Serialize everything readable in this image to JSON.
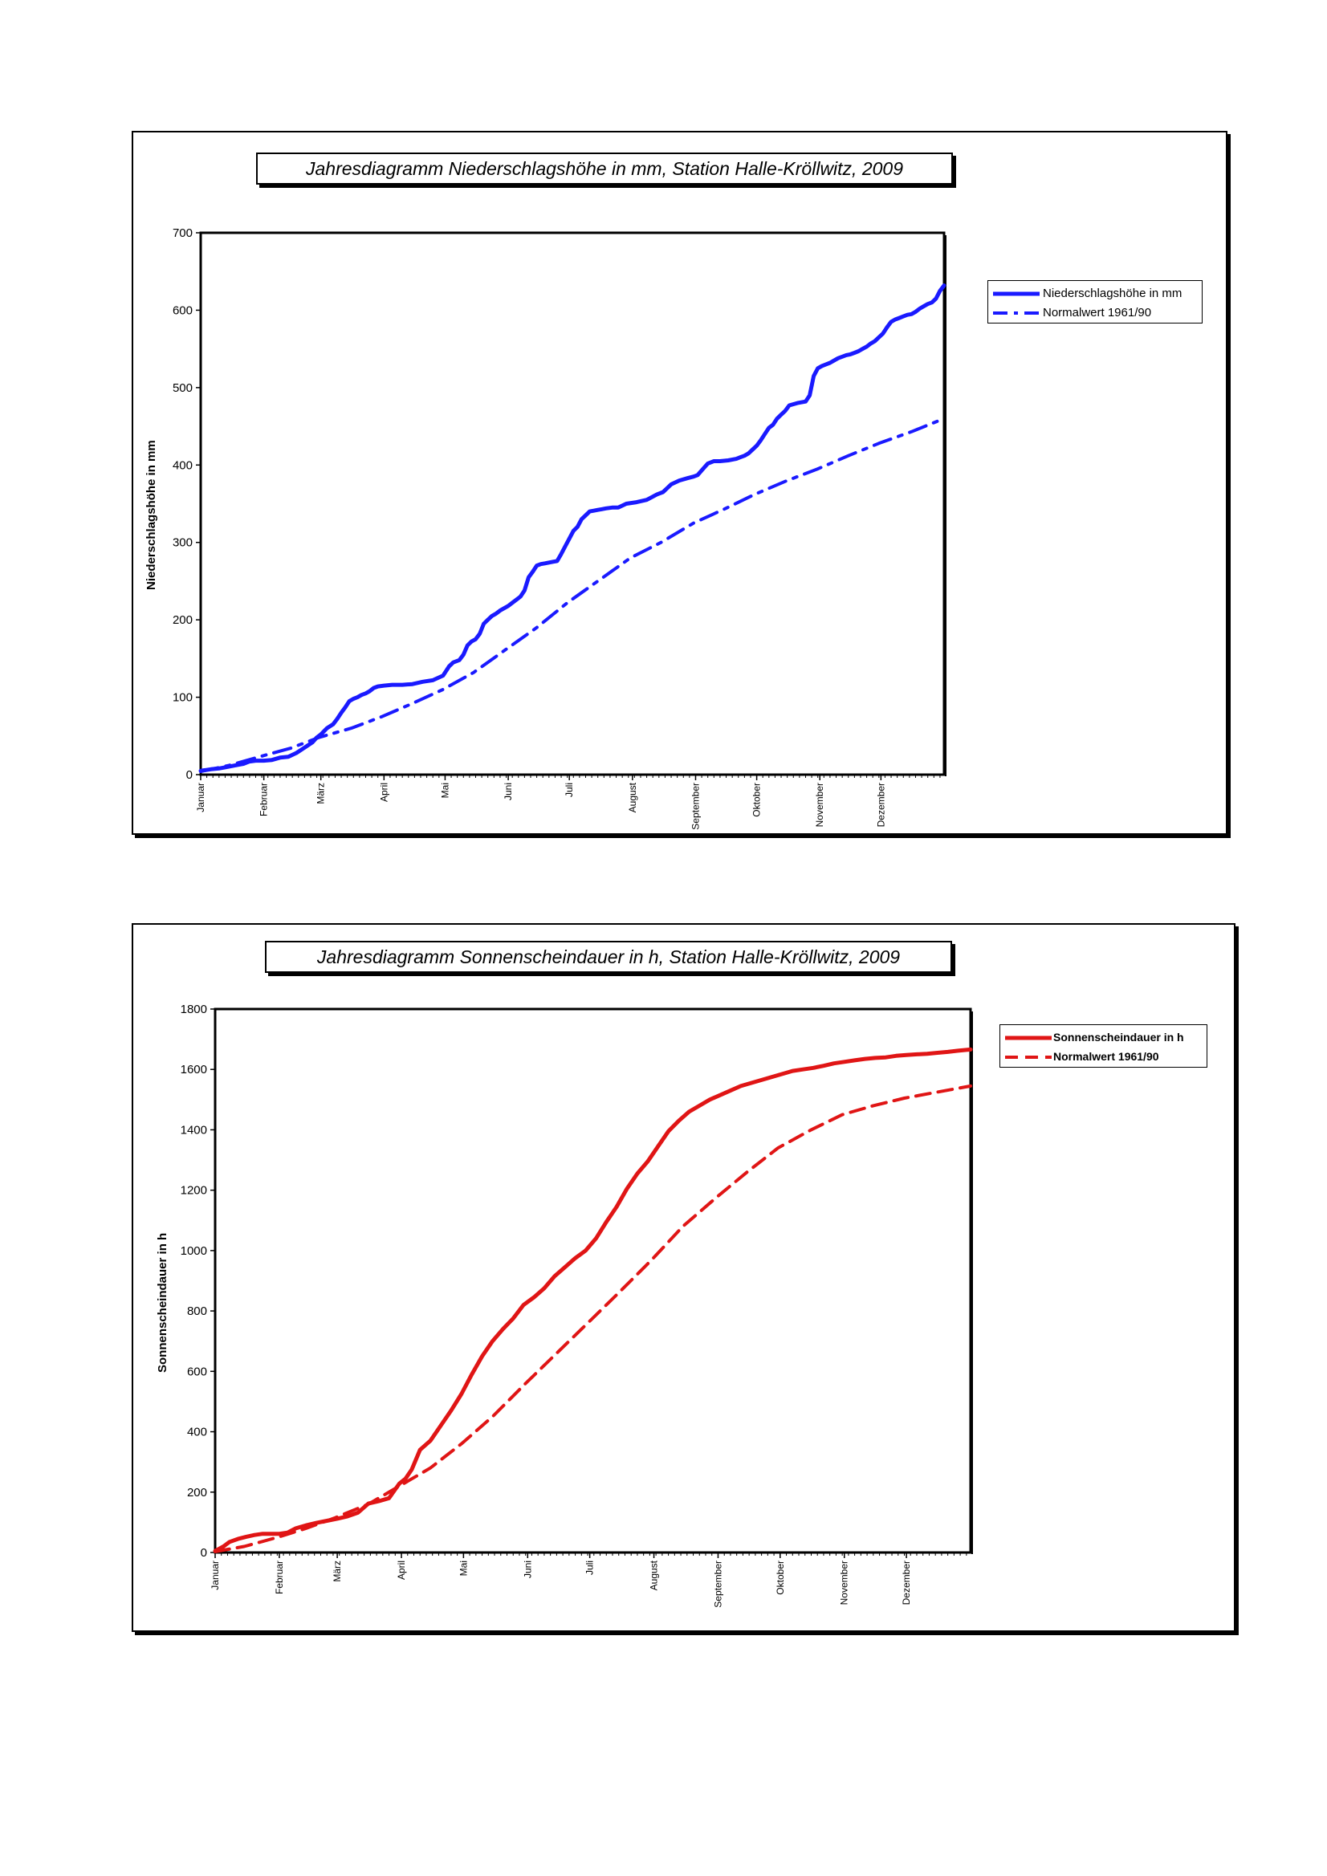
{
  "chart_data": [
    {
      "type": "line",
      "title": "Jahresdiagramm Niederschlagshöhe in mm,  Station Halle-Kröllwitz, 2009",
      "xlabel": "",
      "ylabel": "Niederschlagshöhe in mm",
      "categories": [
        "Januar",
        "Februar",
        "März",
        "April",
        "Mai",
        "Juni",
        "Juli",
        "August",
        "September",
        "Oktober",
        "November",
        "Dezember"
      ],
      "ylim": [
        0,
        700
      ],
      "yticks": [
        0,
        100,
        200,
        300,
        400,
        500,
        600,
        700
      ],
      "x_unit": "day of year",
      "xlim": [
        1,
        366
      ],
      "grid": false,
      "legend_position": "right",
      "colors": {
        "series": "#1a1aff"
      },
      "series": [
        {
          "name": "Niederschlagshöhe in mm",
          "style": "solid",
          "x": [
            1,
            6,
            10,
            14,
            18,
            22,
            25,
            28,
            32,
            36,
            40,
            44,
            48,
            52,
            56,
            58,
            60,
            63,
            66,
            68,
            70,
            72,
            74,
            76,
            78,
            80,
            82,
            84,
            86,
            88,
            91,
            95,
            100,
            105,
            110,
            115,
            120,
            123,
            125,
            128,
            130,
            132,
            134,
            136,
            138,
            140,
            142,
            144,
            146,
            148,
            150,
            152,
            154,
            156,
            158,
            160,
            162,
            164,
            166,
            168,
            170,
            172,
            174,
            176,
            178,
            180,
            182,
            184,
            186,
            188,
            190,
            192,
            194,
            196,
            198,
            200,
            203,
            206,
            210,
            215,
            220,
            225,
            228,
            230,
            232,
            236,
            240,
            243,
            245,
            248,
            250,
            253,
            256,
            260,
            264,
            266,
            268,
            270,
            272,
            274,
            276,
            278,
            280,
            282,
            284,
            286,
            288,
            290,
            294,
            298,
            300,
            302,
            304,
            306,
            308,
            310,
            312,
            314,
            316,
            318,
            320,
            322,
            324,
            326,
            328,
            330,
            332,
            334,
            336,
            338,
            340,
            342,
            344,
            346,
            348,
            350,
            352,
            354,
            356,
            358,
            360,
            362,
            364,
            366
          ],
          "y": [
            5,
            7,
            8,
            10,
            12,
            14,
            17,
            18,
            18,
            19,
            22,
            23,
            28,
            35,
            42,
            48,
            52,
            60,
            65,
            72,
            80,
            87,
            95,
            98,
            100,
            103,
            105,
            108,
            112,
            114,
            115,
            116,
            116,
            117,
            120,
            122,
            128,
            140,
            145,
            148,
            155,
            167,
            172,
            175,
            182,
            195,
            200,
            205,
            208,
            212,
            215,
            218,
            222,
            226,
            230,
            238,
            255,
            262,
            270,
            272,
            273,
            274,
            275,
            276,
            285,
            295,
            305,
            315,
            320,
            330,
            335,
            340,
            341,
            342,
            343,
            344,
            345,
            345,
            350,
            352,
            355,
            362,
            365,
            370,
            375,
            380,
            383,
            385,
            387,
            396,
            402,
            405,
            405,
            406,
            408,
            410,
            412,
            415,
            420,
            425,
            432,
            440,
            448,
            452,
            460,
            465,
            470,
            477,
            480,
            482,
            490,
            515,
            525,
            528,
            530,
            532,
            535,
            538,
            540,
            542,
            543,
            545,
            547,
            550,
            553,
            557,
            560,
            565,
            570,
            578,
            585,
            588,
            590,
            592,
            594,
            595,
            598,
            602,
            605,
            608,
            610,
            615,
            625,
            632
          ]
        },
        {
          "name": "Normalwert 1961/90",
          "style": "dash-dot",
          "x": [
            1,
            15,
            31,
            45,
            59,
            75,
            90,
            105,
            120,
            135,
            151,
            166,
            181,
            196,
            212,
            227,
            243,
            258,
            273,
            289,
            304,
            319,
            334,
            350,
            366
          ],
          "y": [
            4,
            12,
            24,
            34,
            48,
            60,
            75,
            92,
            110,
            132,
            162,
            190,
            222,
            250,
            280,
            300,
            325,
            343,
            362,
            380,
            395,
            412,
            428,
            443,
            460
          ]
        }
      ]
    },
    {
      "type": "line",
      "title": "Jahresdiagramm Sonnenscheindauer in h,  Station Halle-Kröllwitz, 2009",
      "xlabel": "",
      "ylabel": "Sonnenscheindauer in h",
      "categories": [
        "Januar",
        "Februar",
        "März",
        "April",
        "Mai",
        "Juni",
        "Juli",
        "August",
        "September",
        "Oktober",
        "November",
        "Dezember"
      ],
      "ylim": [
        0,
        1800
      ],
      "yticks": [
        0,
        200,
        400,
        600,
        800,
        1000,
        1200,
        1400,
        1600,
        1800
      ],
      "x_unit": "day of year",
      "xlim": [
        1,
        366
      ],
      "grid": false,
      "legend_position": "right",
      "colors": {
        "series": "#e01515"
      },
      "series": [
        {
          "name": "Sonnenscheindauer in h",
          "style": "solid",
          "x": [
            1,
            5,
            8,
            12,
            16,
            20,
            24,
            28,
            32,
            36,
            40,
            45,
            50,
            55,
            60,
            65,
            70,
            75,
            80,
            85,
            90,
            93,
            96,
            100,
            105,
            110,
            115,
            120,
            125,
            130,
            135,
            140,
            145,
            150,
            155,
            160,
            165,
            170,
            175,
            180,
            185,
            190,
            195,
            200,
            205,
            210,
            215,
            220,
            225,
            230,
            235,
            240,
            245,
            250,
            255,
            260,
            265,
            270,
            275,
            280,
            285,
            290,
            295,
            300,
            305,
            310,
            315,
            320,
            325,
            330,
            335,
            340,
            345,
            350,
            355,
            360,
            366
          ],
          "y": [
            5,
            20,
            35,
            45,
            52,
            58,
            62,
            62,
            62,
            66,
            80,
            90,
            98,
            105,
            112,
            120,
            132,
            162,
            170,
            180,
            228,
            245,
            275,
            340,
            370,
            420,
            470,
            525,
            590,
            650,
            700,
            740,
            775,
            820,
            845,
            875,
            915,
            945,
            975,
            1000,
            1040,
            1095,
            1145,
            1205,
            1255,
            1295,
            1345,
            1395,
            1430,
            1460,
            1480,
            1500,
            1515,
            1530,
            1545,
            1555,
            1565,
            1575,
            1585,
            1595,
            1600,
            1605,
            1612,
            1620,
            1625,
            1630,
            1635,
            1638,
            1640,
            1645,
            1648,
            1650,
            1652,
            1655,
            1658,
            1662,
            1666
          ]
        },
        {
          "name": "Normalwert 1961/90",
          "style": "dashed",
          "x": [
            1,
            15,
            31,
            45,
            59,
            75,
            90,
            105,
            120,
            135,
            151,
            166,
            181,
            196,
            212,
            227,
            243,
            258,
            273,
            289,
            304,
            319,
            334,
            350,
            366
          ],
          "y": [
            3,
            20,
            50,
            80,
            115,
            160,
            220,
            280,
            360,
            450,
            560,
            660,
            760,
            860,
            970,
            1080,
            1175,
            1260,
            1340,
            1400,
            1450,
            1480,
            1505,
            1525,
            1545
          ]
        }
      ]
    }
  ]
}
